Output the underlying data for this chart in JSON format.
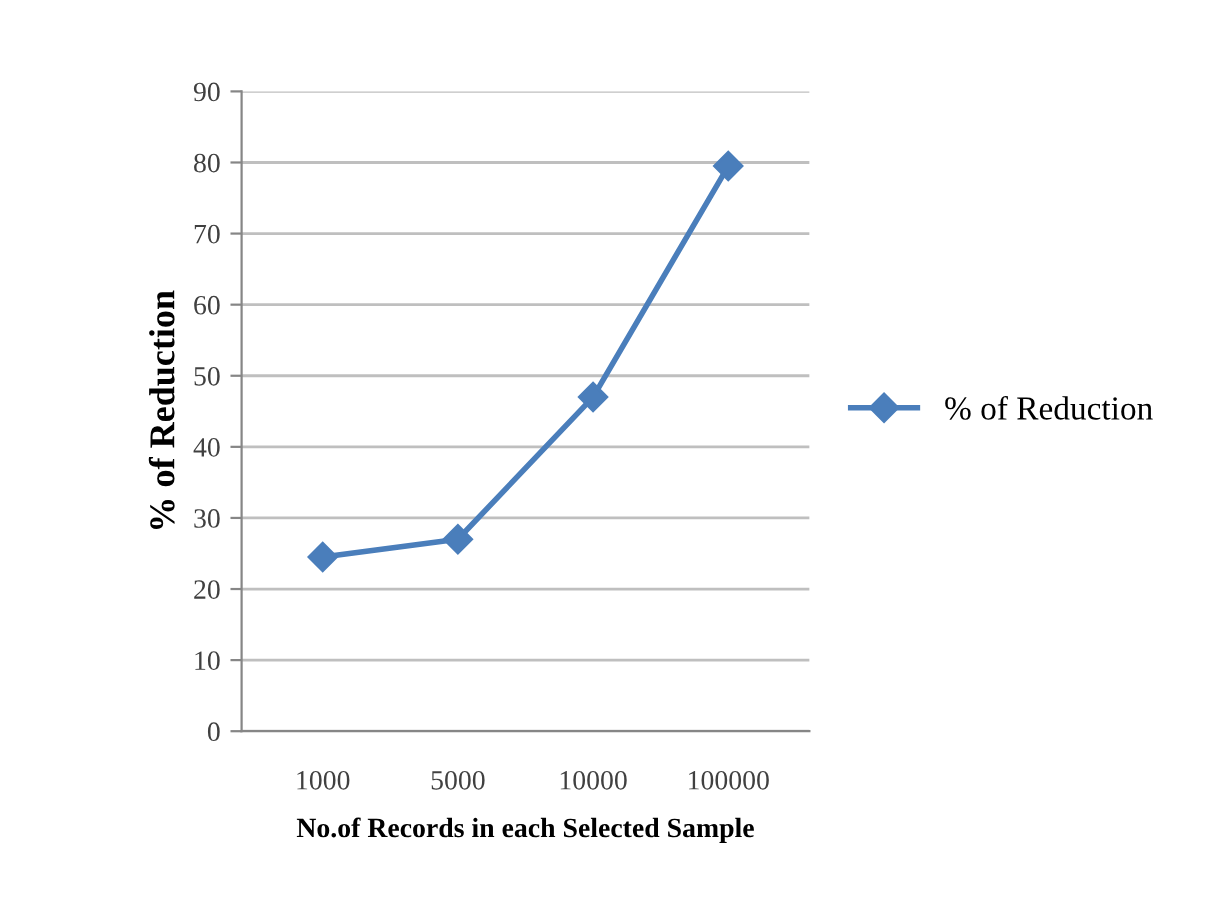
{
  "chart_data": {
    "type": "line",
    "xlabel": "No.of Records in each Selected Sample",
    "ylabel": "% of Reduction",
    "categories": [
      "1000",
      "5000",
      "10000",
      "100000"
    ],
    "series": [
      {
        "name": "% of Reduction",
        "color": "#4a7ebb",
        "values": [
          24.5,
          27,
          47,
          79.5
        ]
      }
    ],
    "ylim": [
      0,
      90
    ],
    "yticks": [
      0,
      10,
      20,
      30,
      40,
      50,
      60,
      70,
      80,
      90
    ],
    "grid": "y",
    "legend": "right",
    "marker": "diamond",
    "line_style": "solid"
  }
}
